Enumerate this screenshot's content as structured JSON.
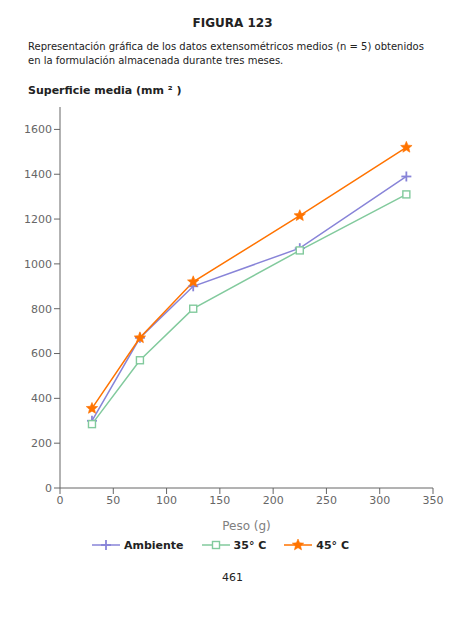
{
  "chart_data": {
    "type": "line",
    "title": "FIGURA 123",
    "subtitle": [
      "Representación gráfica de los datos extensométricos medios (n = 5) obtenidos",
      "en la formulación almacenada durante tres meses."
    ],
    "x_label": "Peso (g)",
    "y_label": "Superficie media (mm ² )",
    "x": [
      30,
      75,
      125,
      225,
      325
    ],
    "series": [
      {
        "name": "Ambiente",
        "color": "#8884d8",
        "marker": "plus",
        "values": [
          300,
          670,
          900,
          1070,
          1390
        ]
      },
      {
        "name": "35° C",
        "color": "#82ca9d",
        "marker": "square",
        "values": [
          285,
          570,
          800,
          1060,
          1310
        ]
      },
      {
        "name": "45° C",
        "color": "#ff7300",
        "marker": "star",
        "values": [
          355,
          670,
          920,
          1215,
          1520
        ]
      }
    ],
    "xlim": [
      0,
      350
    ],
    "ylim": [
      0,
      1700
    ],
    "xticks": [
      0,
      50,
      100,
      150,
      200,
      250,
      300,
      350
    ],
    "yticks": [
      0,
      200,
      400,
      600,
      800,
      1000,
      1200,
      1400,
      1600
    ],
    "grid": false,
    "legend": "bottom",
    "annotations": [
      "461"
    ]
  }
}
